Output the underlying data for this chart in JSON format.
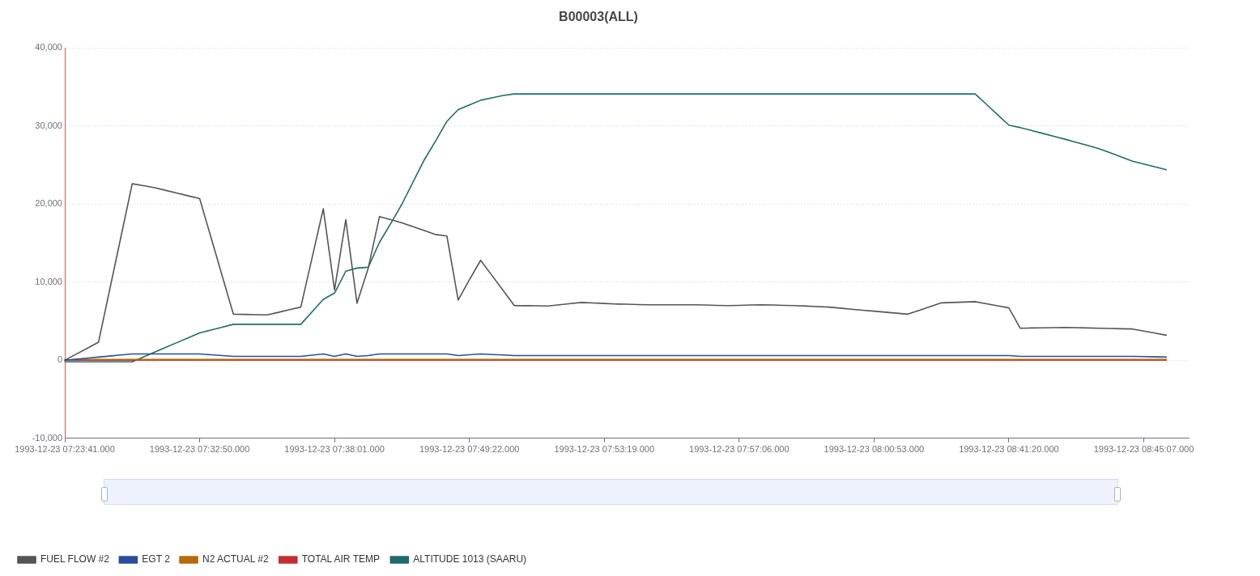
{
  "chart_data": {
    "type": "line",
    "title": "B00003(ALL)",
    "categories": [
      "1993-12-23 07:23:41.000",
      null,
      null,
      null,
      null,
      null,
      null,
      null,
      null,
      null,
      null,
      null,
      "1993-12-23 07:32:50.000",
      null,
      null,
      null,
      null,
      null,
      null,
      null,
      null,
      null,
      null,
      null,
      "1993-12-23 07:38:01.000",
      null,
      null,
      null,
      null,
      null,
      null,
      null,
      null,
      null,
      null,
      null,
      "1993-12-23 07:49:22.000",
      null,
      null,
      null,
      null,
      null,
      null,
      null,
      null,
      null,
      null,
      null,
      "1993-12-23 07:53:19.000",
      null,
      null,
      null,
      null,
      null,
      null,
      null,
      null,
      null,
      null,
      null,
      "1993-12-23 07:57:06.000",
      null,
      null,
      null,
      null,
      null,
      null,
      null,
      null,
      null,
      null,
      null,
      "1993-12-23 08:00:53.000",
      null,
      null,
      null,
      null,
      null,
      null,
      null,
      null,
      null,
      null,
      null,
      "1993-12-23 08:41:20.000",
      null,
      null,
      null,
      null,
      null,
      null,
      null,
      null,
      null,
      null,
      null,
      "1993-12-23 08:45:07.000",
      null,
      null,
      null,
      null
    ],
    "series": [
      {
        "name": "FUEL FLOW #2",
        "color": "#555555",
        "values": [
          0,
          770,
          1530,
          2300,
          9070,
          15830,
          22600,
          22350,
          22100,
          21750,
          21400,
          21050,
          20700,
          15770,
          10830,
          5900,
          5870,
          5830,
          5800,
          6130,
          6470,
          6800,
          13100,
          19400,
          9000,
          18000,
          7300,
          11800,
          18400,
          18000,
          17600,
          17100,
          16600,
          16100,
          15900,
          7700,
          10300,
          12800,
          10870,
          8930,
          7000,
          6980,
          6970,
          6950,
          7100,
          7250,
          7400,
          7330,
          7270,
          7200,
          7170,
          7130,
          7100,
          7100,
          7100,
          7100,
          7100,
          7070,
          7030,
          7000,
          7030,
          7070,
          7100,
          7070,
          7030,
          7000,
          6930,
          6870,
          6800,
          6670,
          6530,
          6400,
          6280,
          6150,
          6030,
          5900,
          6380,
          6870,
          7350,
          7400,
          7450,
          7500,
          7230,
          6970,
          6700,
          4100,
          4130,
          4150,
          4180,
          4200,
          4170,
          4130,
          4100,
          4070,
          4030,
          4000,
          3730,
          3470,
          3200,
          null,
          null
        ]
      },
      {
        "name": "EGT 2",
        "color": "#2a4d9b",
        "values": [
          0,
          130,
          270,
          400,
          530,
          670,
          800,
          800,
          800,
          800,
          800,
          800,
          800,
          700,
          600,
          500,
          500,
          500,
          500,
          500,
          500,
          500,
          650,
          800,
          500,
          800,
          500,
          600,
          800,
          800,
          800,
          800,
          800,
          800,
          800,
          600,
          700,
          800,
          730,
          670,
          600,
          600,
          600,
          600,
          600,
          600,
          600,
          600,
          600,
          600,
          600,
          600,
          600,
          600,
          600,
          600,
          600,
          600,
          600,
          600,
          600,
          600,
          600,
          600,
          600,
          600,
          600,
          600,
          600,
          600,
          600,
          600,
          600,
          600,
          600,
          600,
          600,
          600,
          600,
          600,
          600,
          600,
          600,
          600,
          600,
          500,
          500,
          500,
          500,
          500,
          500,
          500,
          500,
          500,
          500,
          500,
          470,
          430,
          400,
          null,
          null
        ]
      },
      {
        "name": "N2 ACTUAL #2",
        "color": "#b8690a",
        "values": [
          0,
          90,
          90,
          90,
          90,
          90,
          90,
          90,
          90,
          90,
          90,
          90,
          90,
          90,
          90,
          90,
          90,
          90,
          90,
          90,
          90,
          90,
          90,
          90,
          90,
          90,
          90,
          90,
          90,
          90,
          90,
          90,
          90,
          90,
          90,
          90,
          90,
          90,
          90,
          90,
          90,
          90,
          90,
          90,
          90,
          90,
          90,
          90,
          90,
          90,
          90,
          90,
          90,
          90,
          90,
          90,
          90,
          90,
          90,
          90,
          90,
          90,
          90,
          90,
          90,
          90,
          90,
          90,
          90,
          90,
          90,
          90,
          90,
          90,
          90,
          90,
          90,
          90,
          90,
          90,
          90,
          90,
          90,
          90,
          90,
          90,
          90,
          90,
          90,
          90,
          90,
          90,
          90,
          90,
          90,
          90,
          90,
          90,
          90,
          null,
          null
        ]
      },
      {
        "name": "TOTAL AIR TEMP",
        "color": "#c0302f",
        "values": [
          0,
          0,
          0,
          0,
          0,
          0,
          0,
          0,
          0,
          0,
          0,
          0,
          0,
          0,
          0,
          0,
          0,
          0,
          0,
          0,
          0,
          0,
          0,
          0,
          0,
          0,
          0,
          0,
          0,
          0,
          0,
          0,
          0,
          0,
          0,
          0,
          0,
          0,
          0,
          0,
          0,
          0,
          0,
          0,
          0,
          0,
          0,
          0,
          0,
          0,
          0,
          0,
          0,
          0,
          0,
          0,
          0,
          0,
          0,
          0,
          0,
          0,
          0,
          0,
          0,
          0,
          0,
          0,
          0,
          0,
          0,
          0,
          0,
          0,
          0,
          0,
          0,
          0,
          0,
          0,
          0,
          0,
          0,
          0,
          0,
          0,
          0,
          0,
          0,
          0,
          0,
          0,
          0,
          0,
          0,
          0,
          0,
          0,
          0,
          null,
          null
        ]
      },
      {
        "name": "ALTITUDE 1013 (SAARU)",
        "color": "#1f6b6b",
        "values": [
          -200,
          -200,
          -200,
          -200,
          -200,
          -200,
          -200,
          420,
          1030,
          1650,
          2270,
          2880,
          3500,
          3870,
          4230,
          4600,
          4600,
          4600,
          4600,
          4600,
          4600,
          4600,
          6200,
          7800,
          8600,
          11400,
          11800,
          11900,
          15100,
          17500,
          20000,
          22850,
          25700,
          28100,
          30600,
          32100,
          32700,
          33300,
          33600,
          33900,
          34100,
          34100,
          34100,
          34100,
          34100,
          34100,
          34100,
          34100,
          34100,
          34100,
          34100,
          34100,
          34100,
          34100,
          34100,
          34100,
          34100,
          34100,
          34100,
          34100,
          34100,
          34100,
          34100,
          34100,
          34100,
          34100,
          34100,
          34100,
          34100,
          34100,
          34100,
          34100,
          34100,
          34100,
          34100,
          34100,
          34100,
          34100,
          34100,
          34100,
          34100,
          34100,
          32770,
          31430,
          30100,
          29800,
          29430,
          29050,
          28680,
          28300,
          27900,
          27500,
          27100,
          26570,
          26030,
          25500,
          25130,
          24770,
          24400,
          null,
          null
        ]
      }
    ],
    "ylim": [
      -10000,
      40000
    ],
    "yticks": [
      {
        "value": -10000,
        "label": "-10,000"
      },
      0,
      {
        "value": 10000,
        "label": "10,000"
      },
      {
        "value": 20000,
        "label": "20,000"
      },
      {
        "value": 30000,
        "label": "30,000"
      },
      {
        "value": 40000,
        "label": "40,000"
      }
    ],
    "grid": "y",
    "legend": "bottom left",
    "line_style": "solid"
  }
}
